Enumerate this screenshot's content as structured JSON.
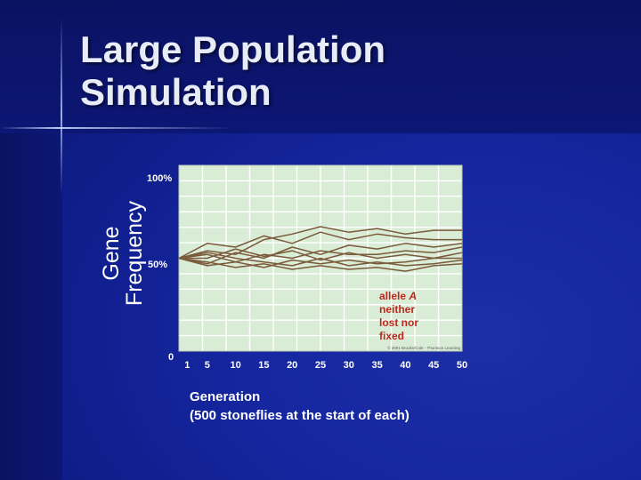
{
  "slide": {
    "title_lines": [
      "Large Population",
      "Simulation"
    ]
  },
  "chart_data": {
    "type": "line",
    "ylabel_lines": [
      "Gene",
      "Frequency"
    ],
    "ytick_labels": [
      "100%",
      "50%",
      "0"
    ],
    "xticks": [
      1,
      5,
      10,
      15,
      20,
      25,
      30,
      35,
      40,
      45,
      50
    ],
    "xlabel_lines": [
      "Generation",
      "(500 stoneflies at the start of each)"
    ],
    "annotation_lines": [
      "allele A",
      "neither",
      "lost nor",
      "fixed"
    ],
    "copyright": "© 2001 Brooks/Cole - Thomson Learning",
    "xlim": [
      0,
      50
    ],
    "ylim": [
      0,
      100
    ],
    "grid": true,
    "colors": {
      "plot_background": "#d9ecd6",
      "grid": "#ffffff",
      "series": "#7a5a3a",
      "annotation": "#c0281b"
    },
    "series": [
      {
        "values": [
          [
            0,
            50
          ],
          [
            5,
            58
          ],
          [
            10,
            56
          ],
          [
            15,
            62
          ],
          [
            20,
            58
          ],
          [
            25,
            64
          ],
          [
            30,
            60
          ],
          [
            35,
            63
          ],
          [
            40,
            61
          ],
          [
            45,
            60
          ],
          [
            50,
            60
          ]
        ]
      },
      {
        "values": [
          [
            0,
            50
          ],
          [
            5,
            54
          ],
          [
            10,
            52
          ],
          [
            15,
            60
          ],
          [
            20,
            63
          ],
          [
            25,
            67
          ],
          [
            30,
            64
          ],
          [
            35,
            66
          ],
          [
            40,
            63
          ],
          [
            45,
            65
          ],
          [
            50,
            65
          ]
        ]
      },
      {
        "values": [
          [
            0,
            50
          ],
          [
            5,
            47
          ],
          [
            10,
            53
          ],
          [
            15,
            50
          ],
          [
            20,
            56
          ],
          [
            25,
            52
          ],
          [
            30,
            57
          ],
          [
            35,
            55
          ],
          [
            40,
            58
          ],
          [
            45,
            56
          ],
          [
            50,
            58
          ]
        ]
      },
      {
        "values": [
          [
            0,
            50
          ],
          [
            5,
            52
          ],
          [
            10,
            48
          ],
          [
            15,
            52
          ],
          [
            20,
            50
          ],
          [
            25,
            54
          ],
          [
            30,
            52
          ],
          [
            35,
            52
          ],
          [
            40,
            54
          ],
          [
            45,
            53
          ],
          [
            50,
            56
          ]
        ]
      },
      {
        "values": [
          [
            0,
            50
          ],
          [
            5,
            50
          ],
          [
            10,
            55
          ],
          [
            15,
            51
          ],
          [
            20,
            54
          ],
          [
            25,
            49
          ],
          [
            30,
            53
          ],
          [
            35,
            50
          ],
          [
            40,
            52
          ],
          [
            45,
            50
          ],
          [
            50,
            53
          ]
        ]
      },
      {
        "values": [
          [
            0,
            50
          ],
          [
            5,
            46
          ],
          [
            10,
            48
          ],
          [
            15,
            45
          ],
          [
            20,
            49
          ],
          [
            25,
            47
          ],
          [
            30,
            49
          ],
          [
            35,
            47
          ],
          [
            40,
            48
          ],
          [
            45,
            50
          ],
          [
            50,
            50
          ]
        ]
      },
      {
        "values": [
          [
            0,
            50
          ],
          [
            5,
            53
          ],
          [
            10,
            50
          ],
          [
            15,
            48
          ],
          [
            20,
            46
          ],
          [
            25,
            50
          ],
          [
            30,
            46
          ],
          [
            35,
            48
          ],
          [
            40,
            46
          ],
          [
            45,
            47
          ],
          [
            50,
            49
          ]
        ]
      },
      {
        "values": [
          [
            0,
            50
          ],
          [
            5,
            48
          ],
          [
            10,
            45
          ],
          [
            15,
            47
          ],
          [
            20,
            44
          ],
          [
            25,
            46
          ],
          [
            30,
            44
          ],
          [
            35,
            45
          ],
          [
            40,
            43
          ],
          [
            45,
            46
          ],
          [
            50,
            47
          ]
        ]
      }
    ]
  }
}
